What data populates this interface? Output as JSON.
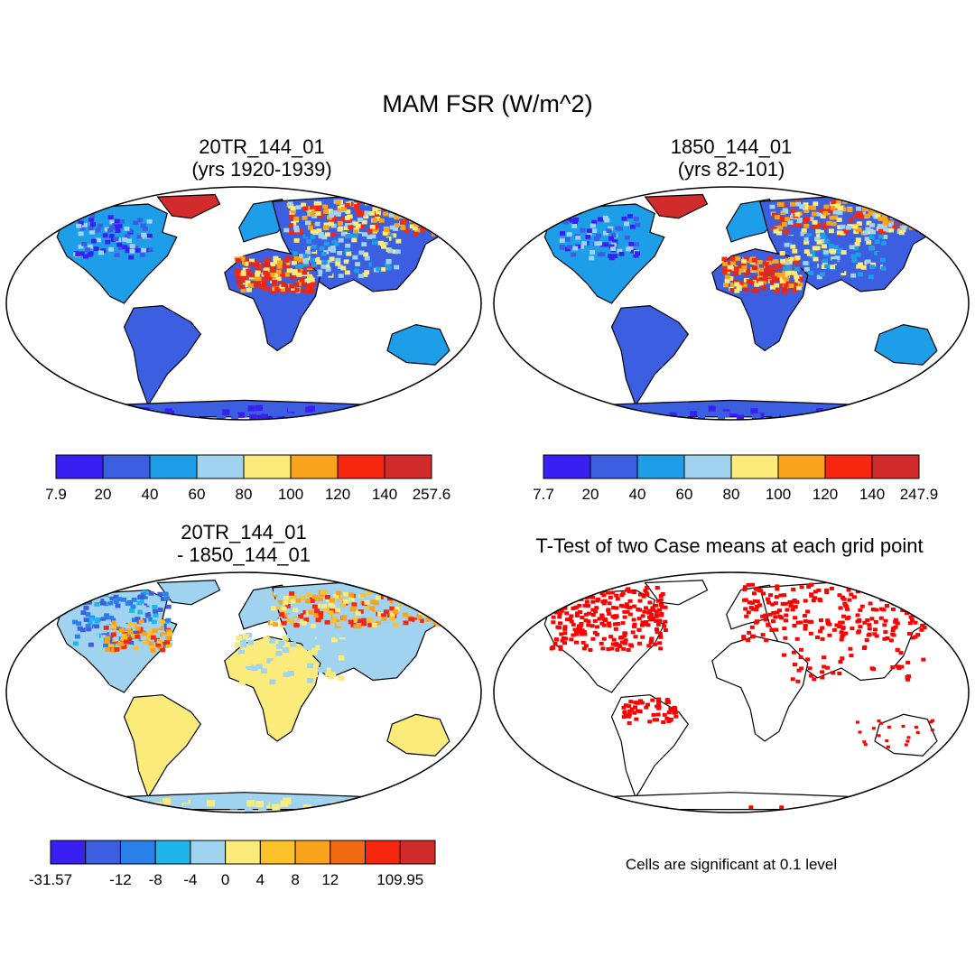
{
  "figure_title": "MAM FSR (W/m^2)",
  "panels": [
    {
      "id": "p1",
      "title_line1": "20TR_144_01",
      "title_line2": "(yrs 1920-1939)",
      "colorbar": {
        "colors": [
          "#3a1ff2",
          "#3b5fe0",
          "#1e9ee8",
          "#9fd3f0",
          "#fbeb7a",
          "#f9a21c",
          "#f6260f",
          "#d22b2b"
        ],
        "labels": [
          "7.9",
          "20",
          "40",
          "60",
          "80",
          "100",
          "120",
          "140",
          "257.6"
        ]
      }
    },
    {
      "id": "p2",
      "title_line1": "1850_144_01",
      "title_line2": "(yrs 82-101)",
      "colorbar": {
        "colors": [
          "#3a1ff2",
          "#3b5fe0",
          "#1e9ee8",
          "#9fd3f0",
          "#fbeb7a",
          "#f9a21c",
          "#f6260f",
          "#d22b2b"
        ],
        "labels": [
          "7.7",
          "20",
          "40",
          "60",
          "80",
          "100",
          "120",
          "140",
          "247.9"
        ]
      }
    },
    {
      "id": "p3",
      "title_line1": "20TR_144_01",
      "title_line2": "- 1850_144_01",
      "colorbar": {
        "colors": [
          "#3a1ff2",
          "#3b5fe0",
          "#2a7fe8",
          "#1eb4ec",
          "#9fd3f0",
          "#fbeb7a",
          "#fbc02a",
          "#f9a21c",
          "#f26a10",
          "#f6260f",
          "#d22b2b"
        ],
        "labels": [
          "-31.57",
          "",
          "-12",
          "-8",
          "-4",
          "0",
          "4",
          "8",
          "12",
          "",
          "109.95"
        ]
      }
    },
    {
      "id": "p4",
      "title_line1": "T-Test of two Case means at each grid point",
      "note": "Cells are significant at 0.1 level",
      "significant_color": "#ff0000"
    }
  ]
}
